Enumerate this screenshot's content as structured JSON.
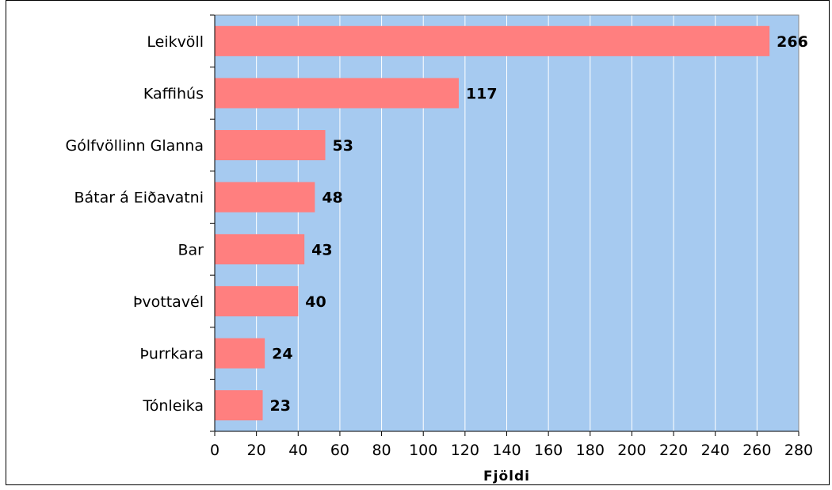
{
  "chart_data": {
    "type": "bar",
    "orientation": "horizontal",
    "categories": [
      "Leikvöll",
      "Kaffihús",
      "Gólfvöllinn Glanna",
      "Bátar á Eiðavatni",
      "Bar",
      "Þvottavél",
      "Þurrkara",
      "Tónleika"
    ],
    "values": [
      266,
      117,
      53,
      48,
      43,
      40,
      24,
      23
    ],
    "title": "",
    "xlabel": "Fjöldi",
    "ylabel": "",
    "xlim": [
      0,
      280
    ],
    "x_ticks": [
      "0",
      "20",
      "40",
      "60",
      "80",
      "100",
      "120",
      "140",
      "160",
      "180",
      "200",
      "220",
      "240",
      "260",
      "280"
    ],
    "grid": "vertical",
    "legend": "none",
    "colors": {
      "bar": "#ff7f7f",
      "plot_background": "#a6caf0",
      "gridline": "#ffffff"
    }
  }
}
